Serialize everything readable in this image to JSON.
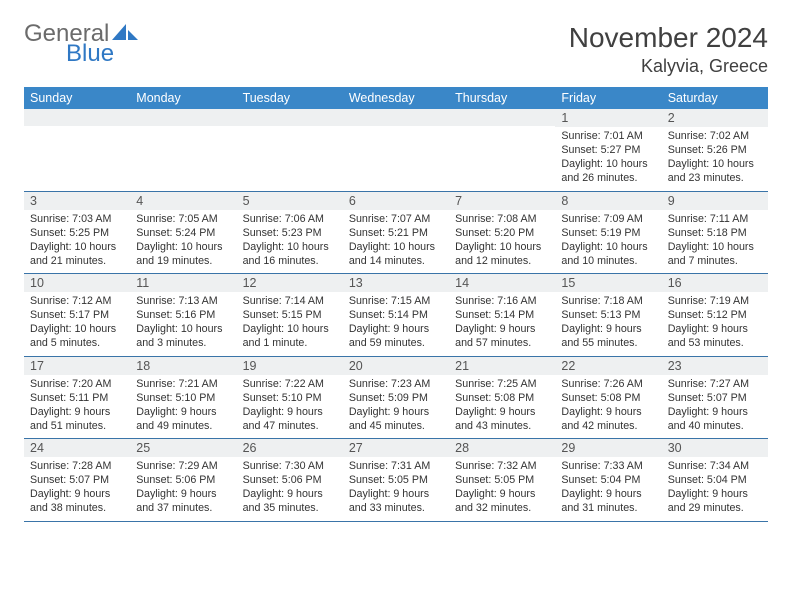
{
  "brand": {
    "word1": "General",
    "word2": "Blue",
    "tri_color": "#2f78c4"
  },
  "title": {
    "month": "November 2024",
    "location": "Kalyvia, Greece"
  },
  "colors": {
    "header_bg": "#3a87c8",
    "header_text": "#ffffff",
    "row_divider": "#3a74a8",
    "daynum_bg": "#eef0f1",
    "body_text": "#333333",
    "title_text": "#404040"
  },
  "weekdays": [
    "Sunday",
    "Monday",
    "Tuesday",
    "Wednesday",
    "Thursday",
    "Friday",
    "Saturday"
  ],
  "weeks": [
    [
      {
        "n": "",
        "sr": "",
        "ss": "",
        "dl": ""
      },
      {
        "n": "",
        "sr": "",
        "ss": "",
        "dl": ""
      },
      {
        "n": "",
        "sr": "",
        "ss": "",
        "dl": ""
      },
      {
        "n": "",
        "sr": "",
        "ss": "",
        "dl": ""
      },
      {
        "n": "",
        "sr": "",
        "ss": "",
        "dl": ""
      },
      {
        "n": "1",
        "sr": "Sunrise: 7:01 AM",
        "ss": "Sunset: 5:27 PM",
        "dl": "Daylight: 10 hours and 26 minutes."
      },
      {
        "n": "2",
        "sr": "Sunrise: 7:02 AM",
        "ss": "Sunset: 5:26 PM",
        "dl": "Daylight: 10 hours and 23 minutes."
      }
    ],
    [
      {
        "n": "3",
        "sr": "Sunrise: 7:03 AM",
        "ss": "Sunset: 5:25 PM",
        "dl": "Daylight: 10 hours and 21 minutes."
      },
      {
        "n": "4",
        "sr": "Sunrise: 7:05 AM",
        "ss": "Sunset: 5:24 PM",
        "dl": "Daylight: 10 hours and 19 minutes."
      },
      {
        "n": "5",
        "sr": "Sunrise: 7:06 AM",
        "ss": "Sunset: 5:23 PM",
        "dl": "Daylight: 10 hours and 16 minutes."
      },
      {
        "n": "6",
        "sr": "Sunrise: 7:07 AM",
        "ss": "Sunset: 5:21 PM",
        "dl": "Daylight: 10 hours and 14 minutes."
      },
      {
        "n": "7",
        "sr": "Sunrise: 7:08 AM",
        "ss": "Sunset: 5:20 PM",
        "dl": "Daylight: 10 hours and 12 minutes."
      },
      {
        "n": "8",
        "sr": "Sunrise: 7:09 AM",
        "ss": "Sunset: 5:19 PM",
        "dl": "Daylight: 10 hours and 10 minutes."
      },
      {
        "n": "9",
        "sr": "Sunrise: 7:11 AM",
        "ss": "Sunset: 5:18 PM",
        "dl": "Daylight: 10 hours and 7 minutes."
      }
    ],
    [
      {
        "n": "10",
        "sr": "Sunrise: 7:12 AM",
        "ss": "Sunset: 5:17 PM",
        "dl": "Daylight: 10 hours and 5 minutes."
      },
      {
        "n": "11",
        "sr": "Sunrise: 7:13 AM",
        "ss": "Sunset: 5:16 PM",
        "dl": "Daylight: 10 hours and 3 minutes."
      },
      {
        "n": "12",
        "sr": "Sunrise: 7:14 AM",
        "ss": "Sunset: 5:15 PM",
        "dl": "Daylight: 10 hours and 1 minute."
      },
      {
        "n": "13",
        "sr": "Sunrise: 7:15 AM",
        "ss": "Sunset: 5:14 PM",
        "dl": "Daylight: 9 hours and 59 minutes."
      },
      {
        "n": "14",
        "sr": "Sunrise: 7:16 AM",
        "ss": "Sunset: 5:14 PM",
        "dl": "Daylight: 9 hours and 57 minutes."
      },
      {
        "n": "15",
        "sr": "Sunrise: 7:18 AM",
        "ss": "Sunset: 5:13 PM",
        "dl": "Daylight: 9 hours and 55 minutes."
      },
      {
        "n": "16",
        "sr": "Sunrise: 7:19 AM",
        "ss": "Sunset: 5:12 PM",
        "dl": "Daylight: 9 hours and 53 minutes."
      }
    ],
    [
      {
        "n": "17",
        "sr": "Sunrise: 7:20 AM",
        "ss": "Sunset: 5:11 PM",
        "dl": "Daylight: 9 hours and 51 minutes."
      },
      {
        "n": "18",
        "sr": "Sunrise: 7:21 AM",
        "ss": "Sunset: 5:10 PM",
        "dl": "Daylight: 9 hours and 49 minutes."
      },
      {
        "n": "19",
        "sr": "Sunrise: 7:22 AM",
        "ss": "Sunset: 5:10 PM",
        "dl": "Daylight: 9 hours and 47 minutes."
      },
      {
        "n": "20",
        "sr": "Sunrise: 7:23 AM",
        "ss": "Sunset: 5:09 PM",
        "dl": "Daylight: 9 hours and 45 minutes."
      },
      {
        "n": "21",
        "sr": "Sunrise: 7:25 AM",
        "ss": "Sunset: 5:08 PM",
        "dl": "Daylight: 9 hours and 43 minutes."
      },
      {
        "n": "22",
        "sr": "Sunrise: 7:26 AM",
        "ss": "Sunset: 5:08 PM",
        "dl": "Daylight: 9 hours and 42 minutes."
      },
      {
        "n": "23",
        "sr": "Sunrise: 7:27 AM",
        "ss": "Sunset: 5:07 PM",
        "dl": "Daylight: 9 hours and 40 minutes."
      }
    ],
    [
      {
        "n": "24",
        "sr": "Sunrise: 7:28 AM",
        "ss": "Sunset: 5:07 PM",
        "dl": "Daylight: 9 hours and 38 minutes."
      },
      {
        "n": "25",
        "sr": "Sunrise: 7:29 AM",
        "ss": "Sunset: 5:06 PM",
        "dl": "Daylight: 9 hours and 37 minutes."
      },
      {
        "n": "26",
        "sr": "Sunrise: 7:30 AM",
        "ss": "Sunset: 5:06 PM",
        "dl": "Daylight: 9 hours and 35 minutes."
      },
      {
        "n": "27",
        "sr": "Sunrise: 7:31 AM",
        "ss": "Sunset: 5:05 PM",
        "dl": "Daylight: 9 hours and 33 minutes."
      },
      {
        "n": "28",
        "sr": "Sunrise: 7:32 AM",
        "ss": "Sunset: 5:05 PM",
        "dl": "Daylight: 9 hours and 32 minutes."
      },
      {
        "n": "29",
        "sr": "Sunrise: 7:33 AM",
        "ss": "Sunset: 5:04 PM",
        "dl": "Daylight: 9 hours and 31 minutes."
      },
      {
        "n": "30",
        "sr": "Sunrise: 7:34 AM",
        "ss": "Sunset: 5:04 PM",
        "dl": "Daylight: 9 hours and 29 minutes."
      }
    ]
  ]
}
